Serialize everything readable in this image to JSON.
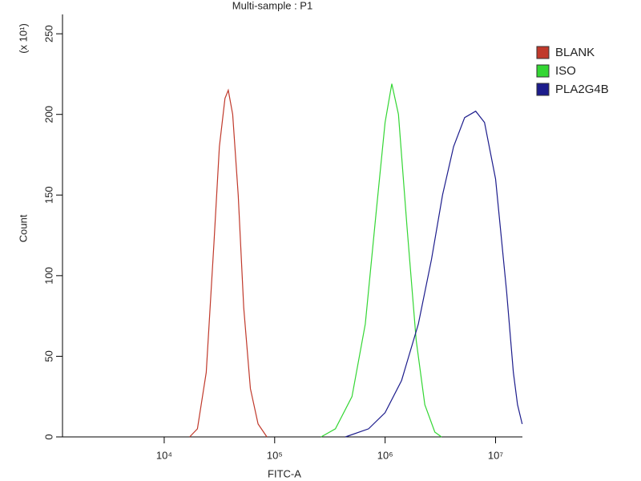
{
  "chart_data": {
    "type": "line",
    "title": "Multi-sample : P1",
    "xlabel": "FITC-A",
    "ylabel": "Count",
    "annotation": "(x 10¹)",
    "xscale": "log",
    "xlim": [
      1200,
      17500000
    ],
    "xticks": [
      {
        "value": 10000,
        "label": "10⁴"
      },
      {
        "value": 100000,
        "label": "10⁵"
      },
      {
        "value": 1000000,
        "label": "10⁶"
      },
      {
        "value": 10000000,
        "label": "10⁷"
      }
    ],
    "ylim": [
      0,
      262
    ],
    "yticks": [
      0,
      50,
      100,
      150,
      200,
      250
    ],
    "series": [
      {
        "name": "BLANK",
        "color": "#c0392b",
        "x": [
          17000,
          20000,
          24000,
          28200,
          31600,
          35500,
          38000,
          41700,
          46800,
          52500,
          60300,
          70800,
          85100
        ],
        "values": [
          0,
          5,
          40,
          120,
          180,
          210,
          215,
          200,
          150,
          80,
          30,
          8,
          0
        ]
      },
      {
        "name": "ISO",
        "color": "#33d633",
        "x": [
          263000,
          355000,
          501000,
          661000,
          832000,
          1000000,
          1150000,
          1320000,
          1580000,
          1910000,
          2290000,
          2820000,
          3240000
        ],
        "values": [
          0,
          5,
          25,
          70,
          140,
          195,
          219,
          200,
          130,
          60,
          20,
          3,
          0
        ]
      },
      {
        "name": "PLA2G4B",
        "color": "#1c1c8c",
        "x": [
          437000,
          708000,
          1000000,
          1410000,
          2000000,
          2630000,
          3310000,
          4170000,
          5250000,
          6610000,
          7940000,
          10000000,
          12600000,
          14500000,
          15800000,
          17400000
        ],
        "values": [
          0,
          5,
          15,
          35,
          70,
          110,
          150,
          180,
          198,
          202,
          195,
          160,
          90,
          40,
          20,
          8
        ]
      }
    ]
  }
}
